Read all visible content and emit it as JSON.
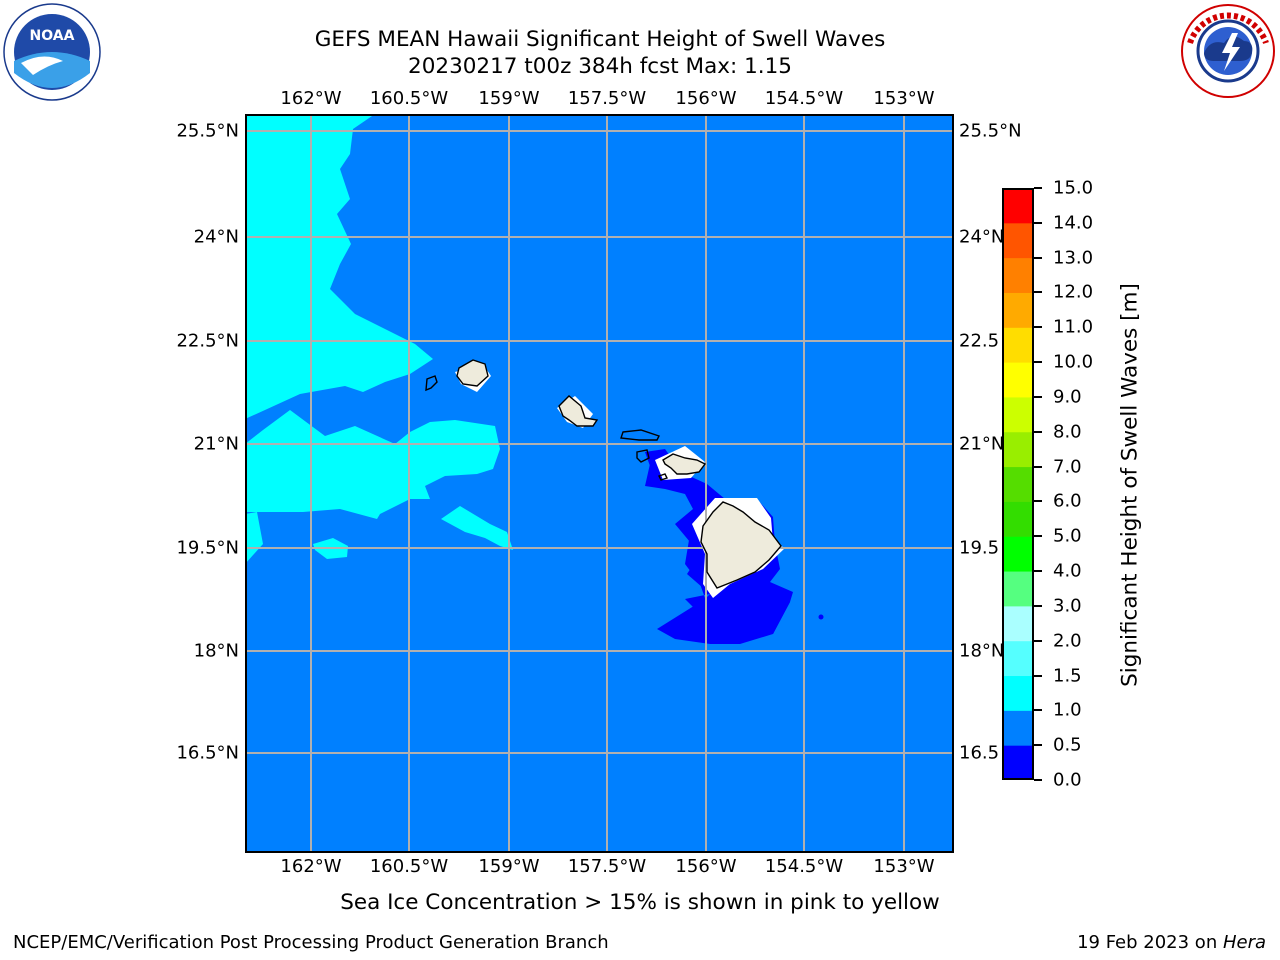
{
  "title": {
    "line1": "GEFS MEAN Hawaii Significant Height of Swell Waves",
    "line2": "20230217 t00z 384h fcst   Max: 1.15"
  },
  "logos": {
    "noaa": {
      "text": "NOAA",
      "ring_text": "NATIONAL OCEANIC AND ATMOSPHERIC ADMINISTRATION · U.S. DEPARTMENT OF COMMERCE"
    },
    "nws": {
      "ring_text": "NATIONAL WEATHER SERVICE"
    }
  },
  "map": {
    "lon_ticks": [
      "162°W",
      "160.5°W",
      "159°W",
      "157.5°W",
      "156°W",
      "154.5°W",
      "153°W"
    ],
    "lat_ticks_left": [
      "25.5°N",
      "24°N",
      "22.5°N",
      "21°N",
      "19.5°N",
      "18°N",
      "16.5°N"
    ],
    "lat_ticks_right": [
      "25.5°N",
      "24°N",
      "22.5",
      "21°N",
      "19.5",
      "18°N",
      "16.5"
    ],
    "colors": {
      "background_sea": "#0080ff",
      "low_swell": "#0000ff",
      "mid_swell": "#00ffff",
      "land": "#eeebdc",
      "grid": "#b0b0b0"
    }
  },
  "colorbar": {
    "label": "Significant Height of Swell Waves [m]",
    "ticks": [
      "0.0",
      "0.5",
      "1.0",
      "1.5",
      "2.0",
      "3.0",
      "4.0",
      "5.0",
      "6.0",
      "7.0",
      "8.0",
      "9.0",
      "10.0",
      "11.0",
      "12.0",
      "13.0",
      "14.0",
      "15.0"
    ],
    "colors": [
      "#0000ff",
      "#0080ff",
      "#00ffff",
      "#55ffff",
      "#aaffff",
      "#55ff80",
      "#00ff00",
      "#33dd00",
      "#55dd00",
      "#99ee00",
      "#ccff00",
      "#ffff00",
      "#ffdd00",
      "#ffaa00",
      "#ff8000",
      "#ff5500",
      "#ff0000"
    ]
  },
  "caption": "Sea Ice Concentration > 15% is shown in pink to yellow",
  "footer": {
    "left": "NCEP/EMC/Verification Post Processing Product Generation Branch",
    "right_date": "19 Feb 2023 on ",
    "right_host": "Hera"
  }
}
